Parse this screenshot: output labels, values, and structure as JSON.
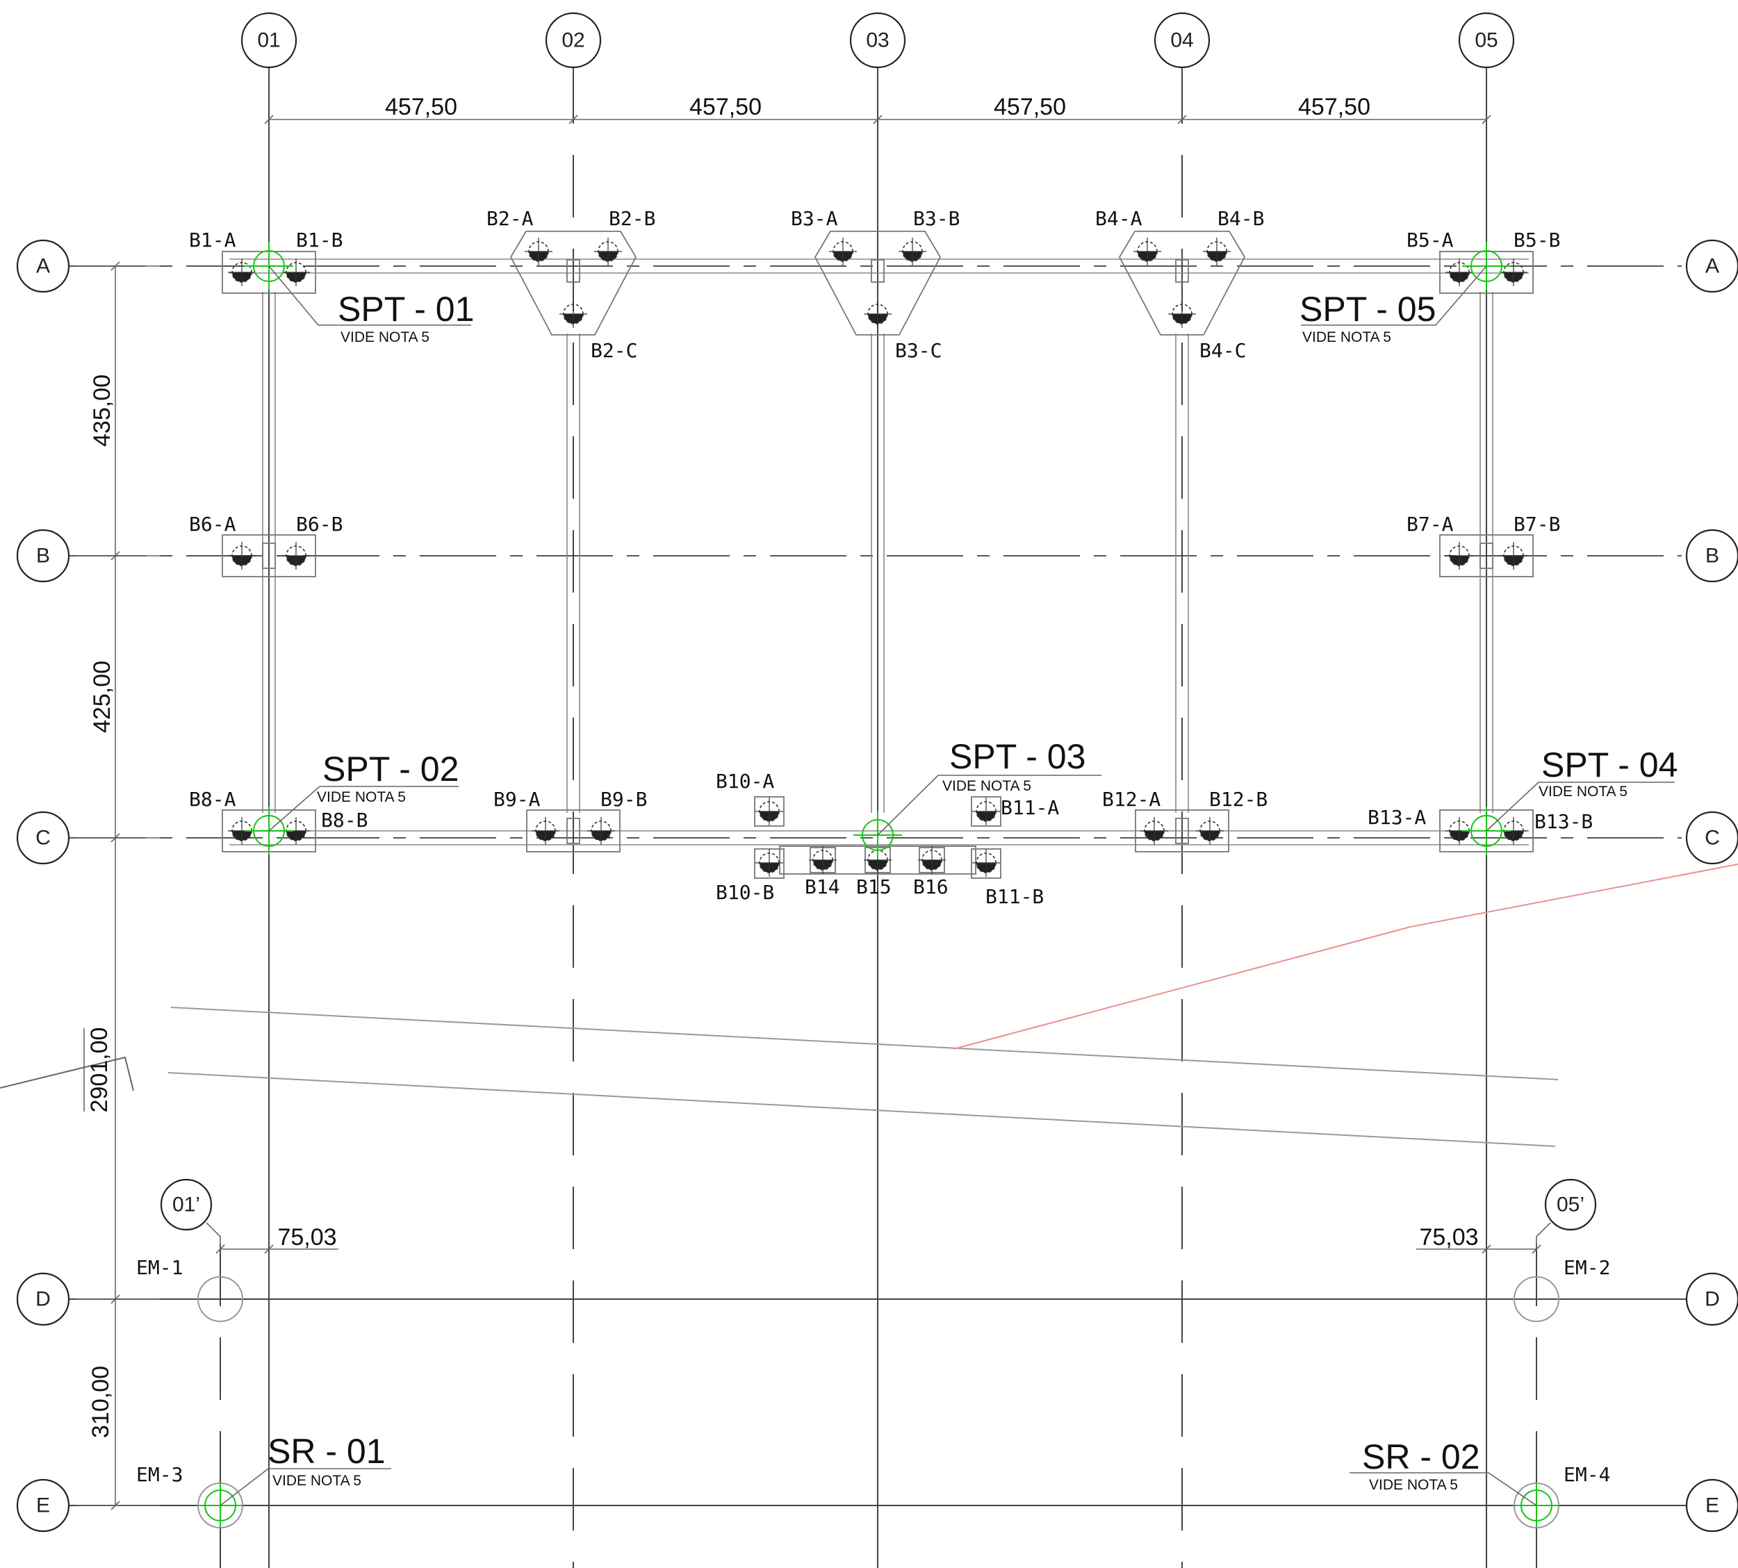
{
  "grid": {
    "columns": [
      "01",
      "02",
      "03",
      "04",
      "05"
    ],
    "rows": [
      "A",
      "B",
      "C",
      "D",
      "E"
    ],
    "aux_columns": [
      "01’",
      "05’"
    ]
  },
  "dimensions": {
    "spans_x": [
      "457,50",
      "457,50",
      "457,50",
      "457,50"
    ],
    "spans_y": [
      "435,00",
      "425,00",
      "2901,00",
      "310,00"
    ],
    "offset_left": "75,03",
    "offset_right": "75,03"
  },
  "piles": {
    "b1a": "B1-A",
    "b1b": "B1-B",
    "b2a": "B2-A",
    "b2b": "B2-B",
    "b2c": "B2-C",
    "b3a": "B3-A",
    "b3b": "B3-B",
    "b3c": "B3-C",
    "b4a": "B4-A",
    "b4b": "B4-B",
    "b4c": "B4-C",
    "b5a": "B5-A",
    "b5b": "B5-B",
    "b6a": "B6-A",
    "b6b": "B6-B",
    "b7a": "B7-A",
    "b7b": "B7-B",
    "b8a": "B8-A",
    "b8b": "B8-B",
    "b9a": "B9-A",
    "b9b": "B9-B",
    "b10a": "B10-A",
    "b10b": "B10-B",
    "b11a": "B11-A",
    "b11b": "B11-B",
    "b12a": "B12-A",
    "b12b": "B12-B",
    "b13a": "B13-A",
    "b13b": "B13-B",
    "b14": "B14",
    "b15": "B15",
    "b16": "B16"
  },
  "boreholes": {
    "spt01": "SPT - 01",
    "spt02": "SPT - 02",
    "spt03": "SPT - 03",
    "spt04": "SPT - 04",
    "spt05": "SPT - 05",
    "sr01": "SR - 01",
    "sr02": "SR - 02",
    "note": "VIDE NOTA 5"
  },
  "em_marks": {
    "em1": "EM-1",
    "em2": "EM-2",
    "em3": "EM-3",
    "em4": "EM-4"
  },
  "colors": {
    "survey": "#19c419",
    "line": "#444444",
    "red_line": "#e89090"
  }
}
